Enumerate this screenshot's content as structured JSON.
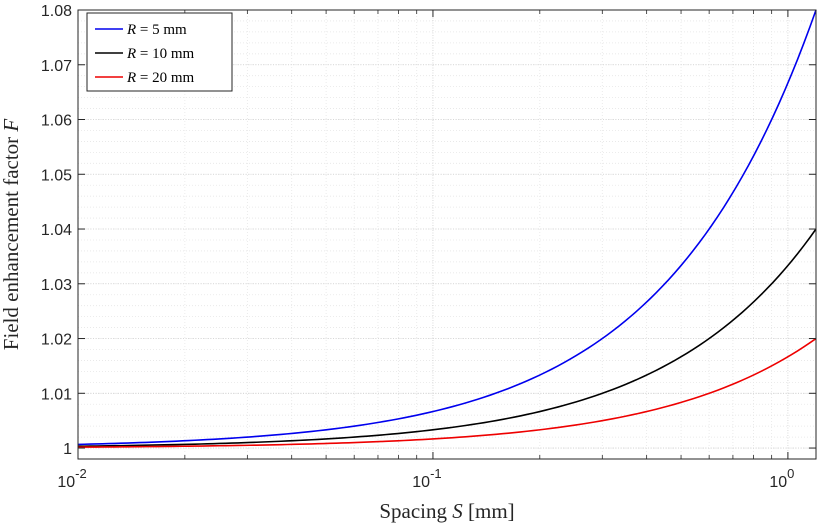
{
  "chart_data": {
    "type": "line",
    "title": "",
    "xlabel": "Spacing S [mm]",
    "ylabel": "Field enhancement factor F",
    "xscale": "log",
    "xlim": [
      0.01,
      1.2
    ],
    "ylim": [
      0.998,
      1.08
    ],
    "xticks": [
      0.01,
      0.1,
      1
    ],
    "xtick_labels": [
      {
        "base": "10",
        "exp": "-2"
      },
      {
        "base": "10",
        "exp": "-1"
      },
      {
        "base": "10",
        "exp": "0"
      }
    ],
    "yticks": [
      1,
      1.01,
      1.02,
      1.03,
      1.04,
      1.05,
      1.06,
      1.07,
      1.08
    ],
    "ytick_labels": [
      "1",
      "1.01",
      "1.02",
      "1.03",
      "1.04",
      "1.05",
      "1.06",
      "1.07",
      "1.08"
    ],
    "grid": true,
    "legend_position": "top-left",
    "series": [
      {
        "name": "R = 5 mm",
        "color": "#0000ee",
        "x": [
          0.01,
          0.02,
          0.03,
          0.05,
          0.1,
          0.2,
          0.3,
          0.5,
          0.7,
          1.0,
          1.2
        ],
        "y": [
          1.0007,
          1.0013,
          1.002,
          1.0033,
          1.0067,
          1.0133,
          1.02,
          1.0333,
          1.0467,
          1.0667,
          1.08
        ]
      },
      {
        "name": "R = 10 mm",
        "color": "#000000",
        "x": [
          0.01,
          0.02,
          0.03,
          0.05,
          0.1,
          0.2,
          0.3,
          0.5,
          0.7,
          1.0,
          1.2
        ],
        "y": [
          1.0003,
          1.0007,
          1.001,
          1.0017,
          1.0033,
          1.0067,
          1.01,
          1.0167,
          1.0233,
          1.0333,
          1.04
        ]
      },
      {
        "name": "R = 20 mm",
        "color": "#ee0000",
        "x": [
          0.01,
          0.02,
          0.03,
          0.05,
          0.1,
          0.2,
          0.3,
          0.5,
          0.7,
          1.0,
          1.2
        ],
        "y": [
          1.0002,
          1.0003,
          1.0005,
          1.0008,
          1.0017,
          1.0033,
          1.005,
          1.0083,
          1.0117,
          1.0167,
          1.02
        ]
      }
    ],
    "legend": [
      {
        "var": "R",
        "rest": " = 5 mm",
        "color": "#0000ee"
      },
      {
        "var": "R",
        "rest": " = 10 mm",
        "color": "#000000"
      },
      {
        "var": "R",
        "rest": " = 20 mm",
        "color": "#ee0000"
      }
    ],
    "xlabel_parts": {
      "pre": "Spacing ",
      "var": "S",
      "post": " [mm]"
    },
    "ylabel_parts": {
      "pre": "Field enhancement factor ",
      "var": "F",
      "post": ""
    }
  }
}
